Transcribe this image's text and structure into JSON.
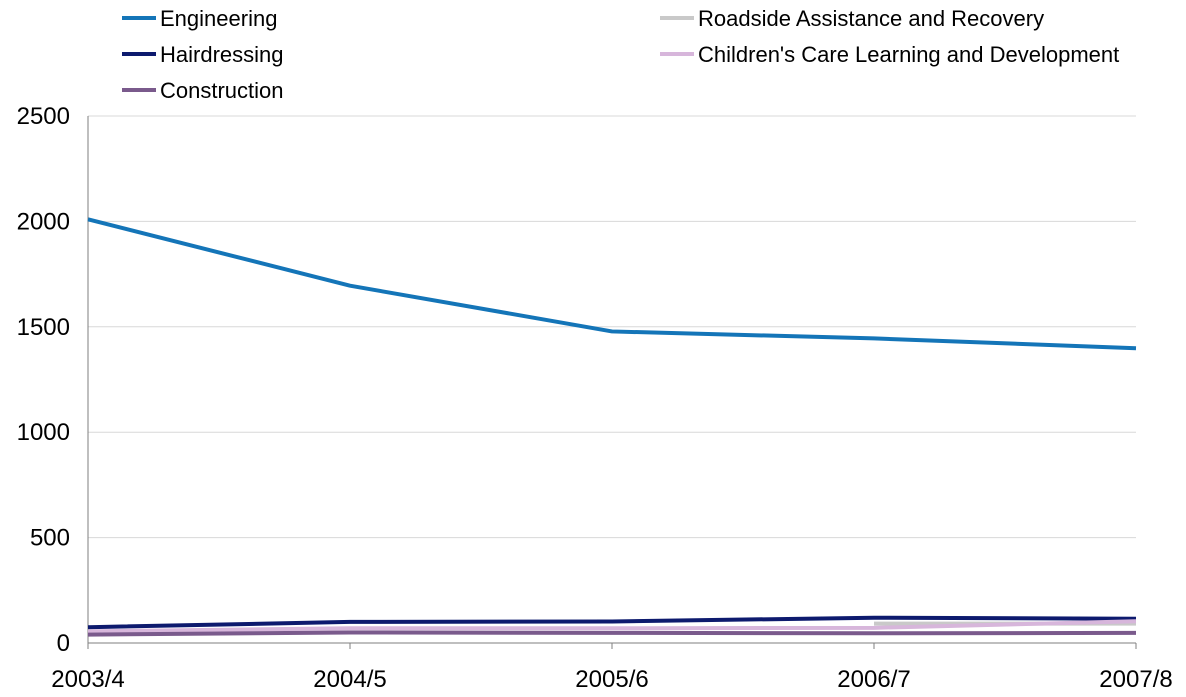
{
  "chart_data": {
    "type": "line",
    "title": "",
    "xlabel": "",
    "ylabel": "",
    "categories": [
      "2003/4",
      "2004/5",
      "2005/6",
      "2006/7",
      "2007/8"
    ],
    "ylim": [
      0,
      2500
    ],
    "yticks": [
      0,
      500,
      1000,
      1500,
      2000,
      2500
    ],
    "grid": true,
    "legend_position": "top",
    "series": [
      {
        "name": "Engineering",
        "color": "#1475b8",
        "values": [
          2010,
          1695,
          1478,
          1445,
          1398
        ]
      },
      {
        "name": "Roadside Assistance and Recovery",
        "color": "#c9c9c9",
        "values": [
          null,
          null,
          null,
          92,
          92
        ]
      },
      {
        "name": "Hairdressing",
        "color": "#0d1a6e",
        "values": [
          75,
          100,
          102,
          120,
          115
        ]
      },
      {
        "name": "Children's Care Learning and Development",
        "color": "#d7b6db",
        "values": [
          55,
          70,
          70,
          72,
          103
        ]
      },
      {
        "name": "Construction",
        "color": "#7a5a8c",
        "values": [
          40,
          50,
          48,
          46,
          48
        ]
      }
    ]
  }
}
